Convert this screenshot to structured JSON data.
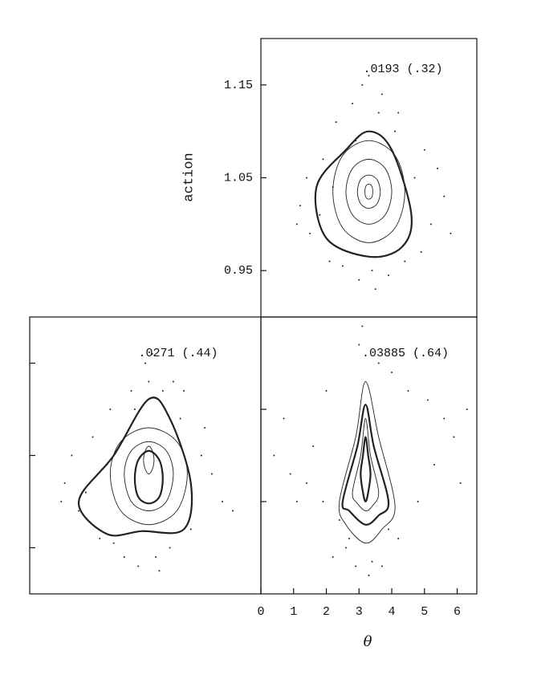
{
  "chart_data": [
    {
      "type": "scatter",
      "title": ".0193 (.32)",
      "ylabel": "action",
      "xlim": [
        0,
        6.6
      ],
      "ylim": [
        0.9,
        1.2
      ],
      "yticks": [
        1.15,
        1.05,
        0.95
      ],
      "tick_labels": true,
      "color": "#222",
      "points": {
        "x": [
          1.2,
          1.5,
          1.9,
          2.3,
          2.8,
          3.1,
          3.6,
          4.1,
          4.7,
          5.2,
          5.6,
          1.4,
          2.1,
          4.9,
          5.4,
          3.0,
          3.4,
          3.9,
          2.5,
          4.4,
          1.8,
          5.0,
          3.3,
          2.9,
          3.7,
          1.1,
          5.8,
          2.2,
          4.2,
          3.5
        ],
        "y": [
          1.02,
          0.99,
          1.07,
          1.11,
          1.13,
          1.15,
          1.12,
          1.1,
          1.05,
          1.0,
          1.03,
          1.05,
          0.96,
          0.97,
          1.06,
          0.94,
          0.95,
          0.945,
          0.955,
          0.96,
          1.01,
          1.08,
          1.16,
          1.09,
          1.14,
          1.0,
          0.99,
          1.04,
          1.12,
          0.93
        ]
      },
      "contours": [
        {
          "bold": true,
          "x": [
            3.3,
            4.0,
            4.6,
            4.3,
            3.3,
            2.0,
            1.7,
            2.6
          ],
          "y": [
            1.1,
            1.08,
            1.01,
            0.975,
            0.965,
            0.985,
            1.04,
            1.08
          ]
        },
        {
          "bold": false,
          "x": [
            3.3,
            4.1,
            4.4,
            4.1,
            3.3,
            2.5,
            2.2,
            2.5
          ],
          "y": [
            1.09,
            1.074,
            1.035,
            0.996,
            0.98,
            0.996,
            1.035,
            1.074
          ]
        },
        {
          "bold": false,
          "x": [
            3.3,
            3.8,
            4.0,
            3.8,
            3.3,
            2.8,
            2.6,
            2.8
          ],
          "y": [
            1.07,
            1.06,
            1.035,
            1.01,
            1.0,
            1.01,
            1.035,
            1.06
          ]
        },
        {
          "bold": false,
          "x": [
            3.3,
            3.55,
            3.65,
            3.55,
            3.3,
            3.05,
            2.95,
            3.05
          ],
          "y": [
            1.053,
            1.048,
            1.035,
            1.022,
            1.017,
            1.022,
            1.035,
            1.048
          ]
        },
        {
          "bold": false,
          "x": [
            3.3,
            3.39,
            3.42,
            3.39,
            3.3,
            3.21,
            3.18,
            3.21
          ],
          "y": [
            1.043,
            1.041,
            1.035,
            1.029,
            1.027,
            1.029,
            1.035,
            1.041
          ]
        }
      ]
    },
    {
      "type": "scatter",
      "title": ".0271 (.44)",
      "xlim": [
        0,
        6.6
      ],
      "ylim": [
        0.9,
        1.2
      ],
      "yticks": [
        1.15,
        1.05,
        0.95
      ],
      "tick_labels": false,
      "color": "#222",
      "points": {
        "x": [
          1.0,
          1.4,
          1.8,
          2.3,
          2.9,
          3.3,
          3.5,
          3.8,
          4.3,
          4.9,
          5.5,
          1.2,
          2.0,
          4.6,
          5.2,
          2.7,
          3.1,
          3.6,
          4.0,
          2.4,
          1.6,
          5.0,
          3.4,
          3.0,
          4.1,
          0.9,
          5.8,
          2.2,
          4.4,
          3.7
        ],
        "y": [
          1.02,
          0.99,
          1.07,
          1.1,
          1.12,
          1.15,
          1.16,
          1.12,
          1.09,
          1.05,
          1.0,
          1.05,
          0.96,
          0.97,
          1.03,
          0.94,
          0.93,
          0.94,
          0.95,
          0.955,
          1.01,
          1.08,
          1.13,
          1.1,
          1.13,
          1.0,
          0.99,
          1.04,
          1.12,
          0.925
        ]
      },
      "contours": [
        {
          "bold": true,
          "x": [
            3.4,
            4.0,
            4.6,
            4.4,
            3.2,
            2.2,
            1.4,
            2.4
          ],
          "y": [
            1.111,
            1.09,
            1.02,
            0.97,
            0.968,
            0.965,
            1.0,
            1.05
          ]
        },
        {
          "bold": false,
          "x": [
            3.4,
            4.2,
            4.5,
            4.2,
            3.4,
            2.6,
            2.3,
            2.6
          ],
          "y": [
            1.08,
            1.065,
            1.03,
            0.99,
            0.975,
            0.99,
            1.03,
            1.065
          ]
        },
        {
          "bold": false,
          "x": [
            3.4,
            3.9,
            4.1,
            3.9,
            3.4,
            2.9,
            2.7,
            2.9
          ],
          "y": [
            1.065,
            1.055,
            1.03,
            1.0,
            0.99,
            1.0,
            1.03,
            1.055
          ]
        },
        {
          "bold": true,
          "x": [
            3.4,
            3.7,
            3.8,
            3.7,
            3.4,
            3.1,
            3.0,
            3.1
          ],
          "y": [
            1.055,
            1.045,
            1.025,
            1.005,
            0.998,
            1.005,
            1.025,
            1.045
          ]
        },
        {
          "bold": false,
          "x": [
            3.4,
            3.5,
            3.55,
            3.5,
            3.4,
            3.3,
            3.25,
            3.3
          ],
          "y": [
            1.06,
            1.055,
            1.045,
            1.035,
            1.03,
            1.035,
            1.045,
            1.055
          ]
        }
      ]
    },
    {
      "type": "scatter",
      "title": ".03885 (.64)",
      "xlabel": "θ",
      "xlim": [
        0,
        6.6
      ],
      "ylim": [
        0.9,
        1.2
      ],
      "xticks": [
        0,
        1,
        2,
        3,
        4,
        5,
        6
      ],
      "yticks": [
        1.1,
        1.0
      ],
      "tick_labels": true,
      "color": "#222",
      "points": {
        "x": [
          0.4,
          0.9,
          1.4,
          1.9,
          2.4,
          2.6,
          2.9,
          3.3,
          3.7,
          4.2,
          4.8,
          5.3,
          5.9,
          6.3,
          0.7,
          1.6,
          2.2,
          3.0,
          3.6,
          4.5,
          5.1,
          5.6,
          6.1,
          2.7,
          3.4,
          3.9,
          1.1,
          2.0,
          4.0,
          3.1
        ],
        "y": [
          1.05,
          1.03,
          1.02,
          1.0,
          0.98,
          0.95,
          0.93,
          0.92,
          0.93,
          0.96,
          1.0,
          1.04,
          1.07,
          1.1,
          1.09,
          1.06,
          0.94,
          1.17,
          1.15,
          1.12,
          1.11,
          1.09,
          1.02,
          0.96,
          0.935,
          0.97,
          1.0,
          1.12,
          1.14,
          1.19
        ]
      },
      "contours": [
        {
          "bold": true,
          "x": [
            3.2,
            3.45,
            3.9,
            3.6,
            3.2,
            2.7,
            2.5,
            2.95
          ],
          "y": [
            1.105,
            1.06,
            1.0,
            0.985,
            0.975,
            0.99,
            1.0,
            1.06
          ]
        },
        {
          "bold": false,
          "x": [
            3.2,
            3.6,
            4.1,
            3.7,
            3.2,
            2.6,
            2.4,
            2.9
          ],
          "y": [
            1.13,
            1.07,
            0.995,
            0.97,
            0.955,
            0.975,
            1.0,
            1.07
          ]
        },
        {
          "bold": false,
          "x": [
            3.2,
            3.35,
            3.6,
            3.4,
            3.2,
            2.95,
            2.8,
            3.05
          ],
          "y": [
            1.09,
            1.05,
            1.01,
            0.995,
            0.99,
            0.998,
            1.01,
            1.05
          ]
        },
        {
          "bold": true,
          "x": [
            3.2,
            3.28,
            3.35,
            3.28,
            3.2,
            3.12,
            3.05,
            3.12
          ],
          "y": [
            1.07,
            1.05,
            1.03,
            1.01,
            1.0,
            1.01,
            1.03,
            1.05
          ]
        }
      ]
    }
  ]
}
